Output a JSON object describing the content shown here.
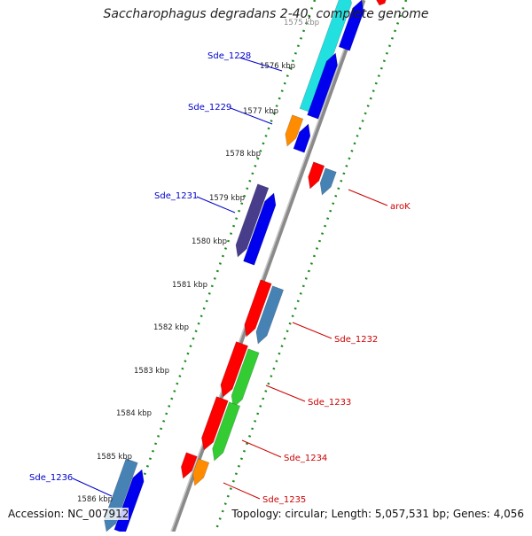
{
  "map": {
    "title": "Saccharophagus degradans 2-40, complete genome",
    "accession": "Accession: NC_007912",
    "summary": "Topology: circular; Length: 5,057,531 bp; Genes: 4,056",
    "ticks": [
      {
        "label": "1575 kbp",
        "kb": 1575
      },
      {
        "label": "1576 kbp",
        "kb": 1576
      },
      {
        "label": "1577 kbp",
        "kb": 1577
      },
      {
        "label": "1578 kbp",
        "kb": 1578
      },
      {
        "label": "1579 kbp",
        "kb": 1579
      },
      {
        "label": "1580 kbp",
        "kb": 1580
      },
      {
        "label": "1581 kbp",
        "kb": 1581
      },
      {
        "label": "1582 kbp",
        "kb": 1582
      },
      {
        "label": "1583 kbp",
        "kb": 1583
      },
      {
        "label": "1584 kbp",
        "kb": 1584
      },
      {
        "label": "1585 kbp",
        "kb": 1585
      },
      {
        "label": "1586 kbp",
        "kb": 1586
      }
    ],
    "gene_labels_left": [
      {
        "name": "Sde_1228",
        "color": "#0000cc"
      },
      {
        "name": "Sde_1229",
        "color": "#0000cc"
      },
      {
        "name": "Sde_1231",
        "color": "#0000cc"
      },
      {
        "name": "Sde_1236",
        "color": "#0000cc"
      }
    ],
    "gene_labels_right": [
      {
        "name": "aroK",
        "color": "#cc0000"
      },
      {
        "name": "Sde_1232",
        "color": "#cc0000"
      },
      {
        "name": "Sde_1233",
        "color": "#cc0000"
      },
      {
        "name": "Sde_1234",
        "color": "#cc0000"
      },
      {
        "name": "Sde_1235",
        "color": "#cc0000"
      }
    ],
    "colors": {
      "backbone": "#8a8a8a",
      "tick_marks": "#1a8a1a",
      "cds_blue": "#0000ee",
      "cds_cyan": "#22e0e0",
      "cds_orange": "#ff8c00",
      "cds_red": "#ff0000",
      "cds_steelblue": "#4682b4",
      "cds_purple": "#483d8b",
      "cds_green": "#33cc33"
    }
  }
}
